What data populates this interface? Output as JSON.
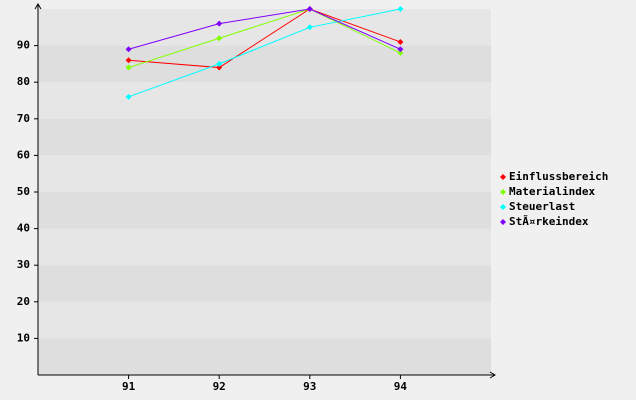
{
  "chart_data": {
    "type": "line",
    "x": [
      91,
      92,
      93,
      94
    ],
    "xlim": [
      90,
      95
    ],
    "xticks": [
      91,
      92,
      93,
      94
    ],
    "ylim": [
      0,
      100
    ],
    "yticks": [
      10,
      20,
      30,
      40,
      50,
      60,
      70,
      80,
      90
    ],
    "grid": true,
    "legend": "right",
    "series": [
      {
        "name": "Einflussbereich",
        "color": "#ff0000",
        "values": [
          86,
          84,
          100,
          91
        ]
      },
      {
        "name": "Materialindex",
        "color": "#80ff00",
        "values": [
          84,
          92,
          100,
          88
        ]
      },
      {
        "name": "Steuerlast",
        "color": "#00ffff",
        "values": [
          76,
          85,
          95,
          100
        ]
      },
      {
        "name": "StÃ¤rkeindex",
        "color": "#8000ff",
        "values": [
          89,
          96,
          100,
          89
        ]
      }
    ]
  }
}
